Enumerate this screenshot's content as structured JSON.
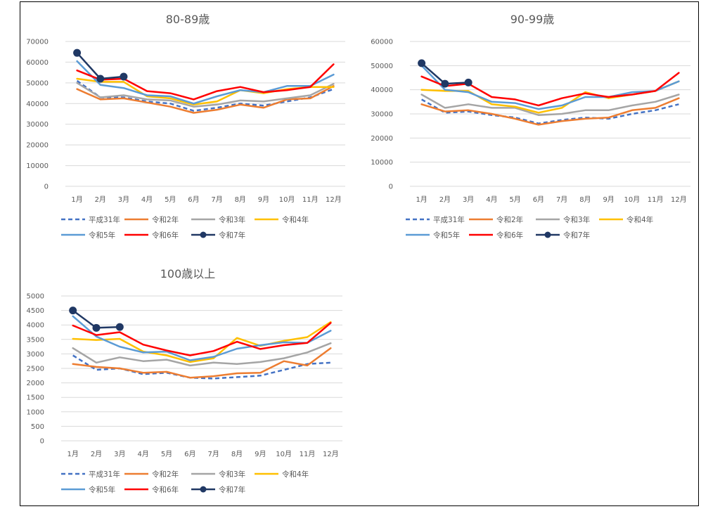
{
  "chart_data": [
    {
      "type": "line",
      "title": "80-89歳",
      "categories": [
        "1月",
        "2月",
        "3月",
        "4月",
        "5月",
        "6月",
        "7月",
        "8月",
        "9月",
        "10月",
        "11月",
        "12月"
      ],
      "ylim": [
        0,
        70000
      ],
      "yticks": [
        0,
        10000,
        20000,
        30000,
        40000,
        50000,
        60000,
        70000
      ],
      "ytick_labels": [
        "0",
        "10000",
        "20000",
        "30000",
        "40000",
        "50000",
        "60000",
        "70000"
      ],
      "grid": true,
      "legend": "bottom",
      "series": [
        {
          "name": "平成31年",
          "color": "#4472c4",
          "style": "dashed",
          "values": [
            51000,
            43000,
            43000,
            41000,
            40000,
            36500,
            38000,
            40000,
            39000,
            41000,
            43000,
            47000
          ]
        },
        {
          "name": "令和2年",
          "color": "#ed7d31",
          "style": "solid",
          "values": [
            47000,
            42000,
            42500,
            40500,
            38500,
            35500,
            37000,
            39500,
            38000,
            42000,
            42500,
            48500
          ]
        },
        {
          "name": "令和3年",
          "color": "#a5a5a5",
          "style": "solid",
          "values": [
            50000,
            43000,
            44000,
            42000,
            41500,
            38500,
            39500,
            41500,
            41000,
            42500,
            44000,
            49500
          ]
        },
        {
          "name": "令和4年",
          "color": "#ffc000",
          "style": "solid",
          "values": [
            52000,
            50500,
            50500,
            43500,
            42500,
            39500,
            41000,
            46500,
            45000,
            47000,
            48000,
            48000
          ]
        },
        {
          "name": "令和5年",
          "color": "#5b9bd5",
          "style": "solid",
          "values": [
            60500,
            49000,
            47500,
            44000,
            43500,
            40000,
            43500,
            46500,
            45500,
            48500,
            48500,
            54000
          ]
        },
        {
          "name": "令和6年",
          "color": "#ff0000",
          "style": "solid",
          "values": [
            56000,
            51500,
            52000,
            46000,
            45000,
            42000,
            46000,
            48000,
            45500,
            46500,
            48000,
            59000
          ]
        },
        {
          "name": "令和7年",
          "color": "#203864",
          "style": "marker",
          "values": [
            64500,
            52000,
            53000,
            null,
            null,
            null,
            null,
            null,
            null,
            null,
            null,
            null
          ]
        }
      ]
    },
    {
      "type": "line",
      "title": "90-99歳",
      "categories": [
        "1月",
        "2月",
        "3月",
        "4月",
        "5月",
        "6月",
        "7月",
        "8月",
        "9月",
        "10月",
        "11月",
        "12月"
      ],
      "ylim": [
        0,
        60000
      ],
      "yticks": [
        0,
        10000,
        20000,
        30000,
        40000,
        50000,
        60000
      ],
      "ytick_labels": [
        "0",
        "10000",
        "20000",
        "30000",
        "40000",
        "50000",
        "60000"
      ],
      "grid": true,
      "legend": "bottom",
      "series": [
        {
          "name": "平成31年",
          "color": "#4472c4",
          "style": "dashed",
          "values": [
            36000,
            30500,
            31000,
            29500,
            28500,
            26000,
            27500,
            28500,
            28000,
            30000,
            31500,
            34000
          ]
        },
        {
          "name": "令和2年",
          "color": "#ed7d31",
          "style": "solid",
          "values": [
            34000,
            31000,
            31500,
            30000,
            28000,
            25500,
            27000,
            28000,
            28500,
            31500,
            32500,
            36500
          ]
        },
        {
          "name": "令和3年",
          "color": "#a5a5a5",
          "style": "solid",
          "values": [
            38000,
            32500,
            34000,
            32500,
            32500,
            29500,
            30000,
            31500,
            31500,
            33500,
            35000,
            38000
          ]
        },
        {
          "name": "令和4年",
          "color": "#ffc000",
          "style": "solid",
          "values": [
            40000,
            39500,
            39500,
            34000,
            33000,
            30500,
            32500,
            39000,
            36500,
            38000,
            39500,
            43500
          ]
        },
        {
          "name": "令和5年",
          "color": "#5b9bd5",
          "style": "solid",
          "values": [
            50000,
            40000,
            39000,
            35000,
            34500,
            32000,
            33500,
            37000,
            37000,
            39000,
            39500,
            43500
          ]
        },
        {
          "name": "令和6年",
          "color": "#ff0000",
          "style": "solid",
          "values": [
            45500,
            41500,
            42500,
            37000,
            36000,
            33500,
            36500,
            38500,
            37000,
            38000,
            39500,
            47000
          ]
        },
        {
          "name": "令和7年",
          "color": "#203864",
          "style": "marker",
          "values": [
            51000,
            42500,
            43000,
            null,
            null,
            null,
            null,
            null,
            null,
            null,
            null,
            null
          ]
        }
      ]
    },
    {
      "type": "line",
      "title": "100歳以上",
      "categories": [
        "1月",
        "2月",
        "3月",
        "4月",
        "5月",
        "6月",
        "7月",
        "8月",
        "9月",
        "10月",
        "11月",
        "12月"
      ],
      "ylim": [
        0,
        5000
      ],
      "yticks": [
        0,
        500,
        1000,
        1500,
        2000,
        2500,
        3000,
        3500,
        4000,
        4500,
        5000
      ],
      "ytick_labels": [
        "0",
        "500",
        "1000",
        "1500",
        "2000",
        "2500",
        "3000",
        "3500",
        "4000",
        "4500",
        "5000"
      ],
      "grid": true,
      "legend": "bottom",
      "series": [
        {
          "name": "平成31年",
          "color": "#4472c4",
          "style": "dashed",
          "values": [
            2950,
            2450,
            2500,
            2300,
            2350,
            2180,
            2150,
            2200,
            2250,
            2450,
            2650,
            2700
          ]
        },
        {
          "name": "令和2年",
          "color": "#ed7d31",
          "style": "solid",
          "values": [
            2650,
            2550,
            2500,
            2350,
            2380,
            2180,
            2230,
            2330,
            2350,
            2750,
            2600,
            3200
          ]
        },
        {
          "name": "令和3年",
          "color": "#a5a5a5",
          "style": "solid",
          "values": [
            3200,
            2700,
            2880,
            2750,
            2800,
            2600,
            2700,
            2650,
            2720,
            2850,
            3050,
            3370
          ]
        },
        {
          "name": "令和4年",
          "color": "#ffc000",
          "style": "solid",
          "values": [
            3520,
            3480,
            3520,
            3080,
            2950,
            2720,
            2850,
            3550,
            3280,
            3450,
            3580,
            4100
          ]
        },
        {
          "name": "令和5年",
          "color": "#5b9bd5",
          "style": "solid",
          "values": [
            4300,
            3600,
            3250,
            3050,
            3080,
            2780,
            2900,
            3180,
            3300,
            3400,
            3380,
            3800
          ]
        },
        {
          "name": "令和6年",
          "color": "#ff0000",
          "style": "solid",
          "values": [
            3980,
            3650,
            3750,
            3320,
            3120,
            2950,
            3100,
            3420,
            3170,
            3300,
            3380,
            4070
          ]
        },
        {
          "name": "令和7年",
          "color": "#203864",
          "style": "marker",
          "values": [
            4500,
            3900,
            3930,
            null,
            null,
            null,
            null,
            null,
            null,
            null,
            null,
            null
          ]
        }
      ]
    }
  ]
}
